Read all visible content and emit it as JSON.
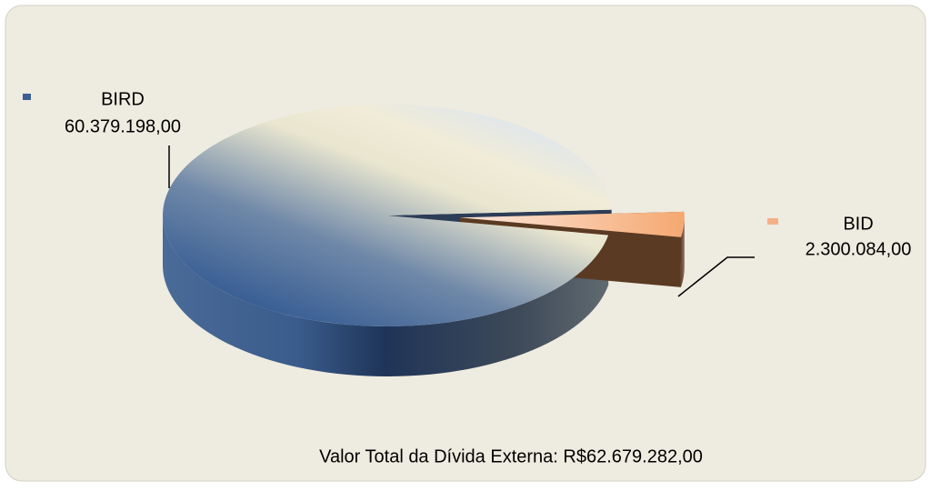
{
  "chart_data": {
    "type": "pie3d",
    "categories": [
      "BIRD",
      "BID"
    ],
    "values": [
      60379198,
      2300084
    ],
    "value_labels": [
      "60.379.198,00",
      "2.300.084,00"
    ],
    "colors": [
      "#3c5f94",
      "#f5b08a"
    ],
    "annotation": "Valor Total da Dívida Externa: R$62.679.282,00"
  }
}
